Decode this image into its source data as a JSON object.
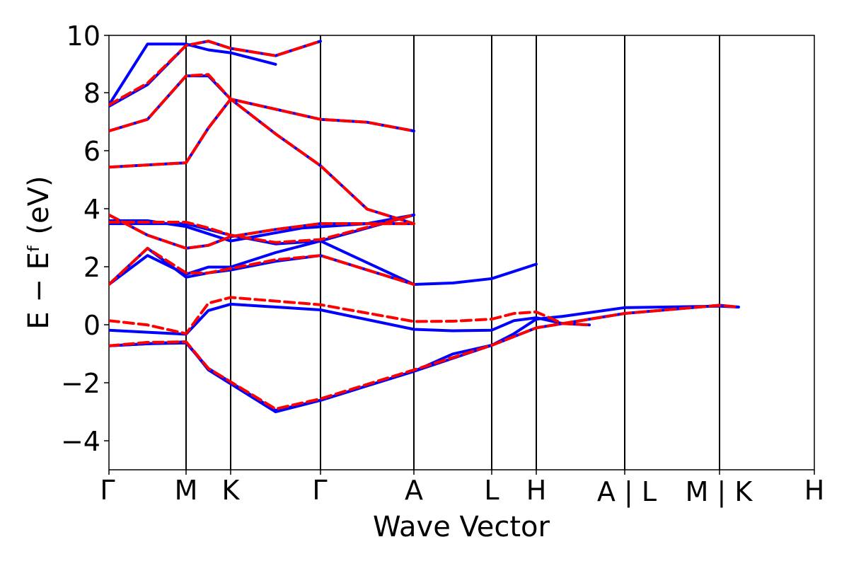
{
  "chart_data": {
    "type": "line",
    "title": "",
    "xlabel": "Wave Vector",
    "ylabel": "E − Eᶠ (eV)",
    "ylim": [
      -5,
      10
    ],
    "y_ticks": [
      -4,
      -2,
      0,
      2,
      4,
      6,
      8,
      10
    ],
    "y_tick_labels": [
      "−4",
      "−2",
      "0",
      "2",
      "4",
      "6",
      "8",
      "10"
    ],
    "grid": false,
    "legend": "none",
    "x_path_ticks": [
      "Γ",
      "M",
      "K",
      "Γ",
      "A",
      "L",
      "H",
      "A | L",
      "M | K",
      "H"
    ],
    "colors": {
      "solid_series": "#0000ff",
      "dashed_series": "#ff0000",
      "frame": "#000000"
    },
    "series": [
      {
        "style": "solid",
        "color": "#0000ff",
        "bands": [
          [
            [
              0,
              -0.72
            ],
            [
              0.5,
              -0.65
            ],
            [
              1,
              -0.62
            ],
            [
              1.5,
              -1.5
            ],
            [
              2.5,
              -2.95
            ],
            [
              3,
              -2.6
            ],
            [
              4,
              -1.6
            ],
            [
              4.5,
              -1.0
            ],
            [
              5,
              -0.7
            ],
            [
              5.5,
              -0.3
            ],
            [
              6,
              0.2
            ],
            [
              6.3,
              0.3
            ],
            [
              7,
              0.6
            ],
            [
              8,
              0.65
            ],
            [
              8.2,
              0.62
            ]
          ],
          [
            [
              0,
              -0.72
            ],
            [
              0.5,
              -0.65
            ],
            [
              1,
              -0.58
            ],
            [
              1.5,
              -1.55
            ],
            [
              2.5,
              -3.0
            ],
            [
              3,
              -2.6
            ],
            [
              4,
              -1.6
            ],
            [
              5,
              -0.7
            ],
            [
              6,
              -0.1
            ],
            [
              7,
              0.4
            ],
            [
              8,
              0.68
            ],
            [
              8.2,
              0.62
            ]
          ],
          [
            [
              0,
              -0.18
            ],
            [
              0.5,
              -0.25
            ],
            [
              1,
              -0.32
            ],
            [
              1.5,
              0.5
            ],
            [
              2,
              0.72
            ],
            [
              3,
              0.52
            ],
            [
              4,
              -0.15
            ],
            [
              4.5,
              -0.2
            ],
            [
              5,
              -0.18
            ],
            [
              5.5,
              0.15
            ],
            [
              6,
              0.25
            ],
            [
              6.3,
              0.05
            ],
            [
              6.6,
              0.0
            ]
          ],
          [
            [
              0,
              1.4
            ],
            [
              0.5,
              2.65
            ],
            [
              1,
              1.65
            ],
            [
              1.5,
              1.8
            ],
            [
              2,
              1.9
            ],
            [
              2.5,
              2.2
            ],
            [
              3,
              2.4
            ],
            [
              4,
              1.4
            ],
            [
              4.5,
              1.45
            ],
            [
              5,
              1.6
            ],
            [
              6,
              2.1
            ]
          ],
          [
            [
              0,
              1.4
            ],
            [
              0.5,
              2.4
            ],
            [
              1,
              1.75
            ],
            [
              1.5,
              2.0
            ],
            [
              2,
              2.0
            ],
            [
              2.5,
              2.5
            ],
            [
              3,
              2.9
            ],
            [
              4,
              1.4
            ]
          ],
          [
            [
              0,
              3.8
            ],
            [
              0.5,
              3.1
            ],
            [
              1,
              2.65
            ],
            [
              1.5,
              2.75
            ],
            [
              2,
              3.05
            ],
            [
              2.5,
              3.3
            ],
            [
              3,
              3.5
            ],
            [
              4,
              3.5
            ]
          ],
          [
            [
              0,
              3.5
            ],
            [
              0.5,
              3.5
            ],
            [
              1,
              3.5
            ],
            [
              1.5,
              3.3
            ],
            [
              2,
              3.1
            ],
            [
              2.5,
              2.8
            ],
            [
              3,
              2.9
            ],
            [
              4,
              3.8
            ]
          ],
          [
            [
              0,
              3.6
            ],
            [
              0.5,
              3.6
            ],
            [
              1,
              3.4
            ],
            [
              2,
              2.9
            ],
            [
              2.8,
              3.35
            ],
            [
              3.5,
              3.5
            ],
            [
              4,
              3.8
            ]
          ],
          [
            [
              0,
              5.45
            ],
            [
              1,
              5.6
            ],
            [
              1.5,
              6.8
            ],
            [
              2,
              7.8
            ],
            [
              3,
              7.1
            ],
            [
              3.5,
              7.0
            ],
            [
              4,
              6.7
            ]
          ],
          [
            [
              0,
              6.7
            ],
            [
              0.5,
              7.1
            ],
            [
              1,
              8.6
            ],
            [
              1.5,
              8.6
            ],
            [
              2,
              7.8
            ],
            [
              2.5,
              6.6
            ],
            [
              3,
              5.5
            ],
            [
              3.5,
              4.0
            ],
            [
              4,
              3.5
            ]
          ],
          [
            [
              0,
              7.55
            ],
            [
              0.5,
              8.3
            ],
            [
              1,
              9.65
            ],
            [
              1.5,
              9.8
            ],
            [
              2,
              9.55
            ],
            [
              2.5,
              9.3
            ],
            [
              3,
              9.8
            ]
          ],
          [
            [
              0,
              7.6
            ],
            [
              0.5,
              9.7
            ],
            [
              1,
              9.7
            ],
            [
              1.5,
              9.5
            ],
            [
              2,
              9.4
            ],
            [
              2.5,
              9.0
            ]
          ]
        ]
      },
      {
        "style": "dashed",
        "color": "#ff0000",
        "bands": [
          [
            [
              0,
              -0.72
            ],
            [
              0.5,
              -0.6
            ],
            [
              1,
              -0.58
            ],
            [
              1.5,
              -1.5
            ],
            [
              2.5,
              -2.9
            ],
            [
              3,
              -2.55
            ],
            [
              4,
              -1.55
            ],
            [
              5,
              -0.7
            ],
            [
              6,
              -0.1
            ],
            [
              7,
              0.4
            ],
            [
              8,
              0.68
            ],
            [
              8.2,
              0.62
            ]
          ],
          [
            [
              0,
              0.15
            ],
            [
              0.5,
              0.0
            ],
            [
              1,
              -0.3
            ],
            [
              1.5,
              0.75
            ],
            [
              2,
              0.95
            ],
            [
              3,
              0.7
            ],
            [
              4,
              0.12
            ],
            [
              4.5,
              0.13
            ],
            [
              5,
              0.2
            ],
            [
              5.5,
              0.4
            ],
            [
              6,
              0.45
            ],
            [
              6.3,
              0.05
            ],
            [
              6.6,
              0.0
            ]
          ],
          [
            [
              0,
              1.4
            ],
            [
              0.5,
              2.65
            ],
            [
              1,
              1.8
            ],
            [
              1.5,
              1.8
            ],
            [
              2,
              1.95
            ],
            [
              2.5,
              2.25
            ],
            [
              3,
              2.4
            ],
            [
              4,
              1.4
            ]
          ],
          [
            [
              0,
              3.8
            ],
            [
              0.5,
              3.1
            ],
            [
              1,
              2.65
            ],
            [
              1.5,
              2.75
            ],
            [
              2,
              3.05
            ],
            [
              2.5,
              3.3
            ],
            [
              3,
              3.5
            ],
            [
              4,
              3.5
            ]
          ],
          [
            [
              0,
              3.55
            ],
            [
              0.5,
              3.55
            ],
            [
              1,
              3.55
            ],
            [
              1.5,
              3.35
            ],
            [
              2,
              3.1
            ],
            [
              2.5,
              2.85
            ],
            [
              3,
              2.95
            ],
            [
              4,
              3.8
            ]
          ],
          [
            [
              0,
              5.45
            ],
            [
              1,
              5.6
            ],
            [
              1.5,
              6.8
            ],
            [
              2,
              7.8
            ],
            [
              3,
              7.1
            ],
            [
              3.5,
              7.0
            ],
            [
              4,
              6.7
            ]
          ],
          [
            [
              0,
              6.7
            ],
            [
              0.5,
              7.1
            ],
            [
              1,
              8.6
            ],
            [
              1.5,
              8.65
            ],
            [
              2,
              7.8
            ],
            [
              2.5,
              6.6
            ],
            [
              3,
              5.5
            ],
            [
              3.5,
              4.0
            ],
            [
              4,
              3.5
            ]
          ],
          [
            [
              0,
              7.6
            ],
            [
              0.5,
              8.35
            ],
            [
              1,
              9.65
            ],
            [
              1.5,
              9.8
            ],
            [
              2,
              9.55
            ],
            [
              2.5,
              9.3
            ],
            [
              3,
              9.8
            ]
          ]
        ]
      }
    ]
  }
}
